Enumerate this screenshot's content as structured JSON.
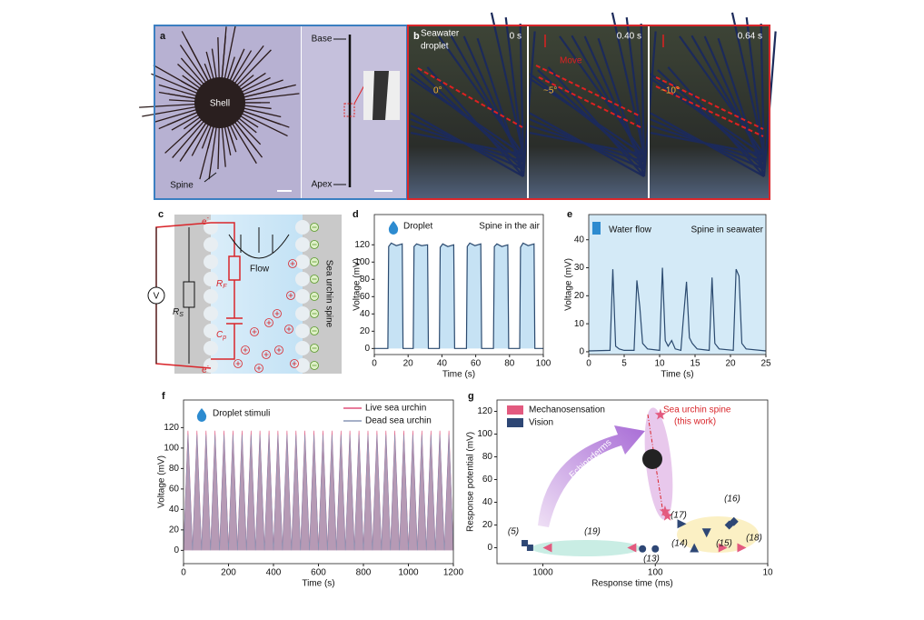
{
  "panels": {
    "a": {
      "label": "a",
      "shell": "Shell",
      "spine": "Spine",
      "base": "Base",
      "apex": "Apex"
    },
    "b": {
      "label": "b",
      "droplet": [
        "Seawater",
        "droplet"
      ],
      "times": [
        "0 s",
        "0.40 s",
        "0.64 s"
      ],
      "move": "Move",
      "angles": [
        "0°",
        "~5°",
        "~10°"
      ]
    },
    "c": {
      "label": "c",
      "electron": "e",
      "electron_sup": "-",
      "flow": "Flow",
      "rf": {
        "main": "R",
        "sub": "F"
      },
      "cp": {
        "main": "C",
        "sub": "p"
      },
      "rs": {
        "main": "R",
        "sub": "S"
      },
      "meter": "V",
      "spine": "Sea urchin spine"
    }
  },
  "chart_data": [
    {
      "type": "line",
      "panel": "d",
      "annotations": [
        "Droplet",
        "Spine in the air"
      ],
      "x_label": "Time (s)",
      "y_label": "Voltage (mV)",
      "xlim": [
        0,
        100
      ],
      "xticks": [
        0,
        20,
        40,
        60,
        80,
        100
      ],
      "ylim": [
        -7,
        155
      ],
      "yticks": [
        0,
        20,
        40,
        60,
        80,
        100,
        120
      ],
      "area_color": "#c6e2f4",
      "series": [
        {
          "color": "#2b4a6f",
          "x": [
            0,
            8,
            8.5,
            10,
            13,
            16.5,
            17,
            23,
            23.5,
            25,
            28,
            31.5,
            32,
            38.5,
            39,
            40.5,
            43.5,
            47,
            47.5,
            54.5,
            55,
            56.5,
            59.5,
            63,
            63.5,
            70.5,
            71,
            72.5,
            75.5,
            79,
            79.5,
            86,
            86.5,
            88,
            91,
            94.5,
            95,
            100
          ],
          "values": [
            0,
            0,
            118,
            122,
            119,
            121,
            0,
            0,
            118,
            121,
            119,
            120,
            0,
            0,
            117,
            121,
            118,
            120,
            0,
            0,
            118,
            122,
            119,
            121,
            0,
            0,
            118,
            121,
            118,
            120,
            0,
            0,
            117,
            122,
            119,
            121,
            0,
            0
          ]
        }
      ]
    },
    {
      "type": "line",
      "panel": "e",
      "annotations": [
        "Water flow",
        "Spine in seawater"
      ],
      "x_label": "Time (s)",
      "y_label": "Voltage (mV)",
      "xlim": [
        0,
        25
      ],
      "xticks": [
        0,
        5,
        10,
        15,
        20,
        25
      ],
      "ylim": [
        -1,
        49
      ],
      "yticks": [
        0,
        10,
        20,
        30,
        40
      ],
      "plot_background": "#d4eaf7",
      "series": [
        {
          "color": "#2b4a6f",
          "x": [
            0,
            3,
            3.4,
            3.8,
            4.3,
            5,
            6.4,
            6.8,
            7.2,
            7.6,
            8.3,
            10,
            10.4,
            10.8,
            11.2,
            11.7,
            12.2,
            13,
            13.3,
            13.8,
            14.2,
            14.6,
            15.3,
            17,
            17.4,
            17.8,
            18.4,
            20.4,
            20.8,
            21.2,
            21.6,
            22.2,
            25
          ],
          "values": [
            0.3,
            0.5,
            29.5,
            2,
            1,
            0.5,
            0.5,
            25.5,
            16,
            3,
            1,
            0.5,
            30,
            4,
            2,
            4,
            1,
            0.5,
            10,
            25,
            5,
            3,
            1,
            0.5,
            26.5,
            3,
            1,
            0.5,
            29.5,
            27,
            3,
            1,
            0.3
          ]
        }
      ]
    },
    {
      "type": "line",
      "panel": "f",
      "annotations": [
        "Droplet stimuli"
      ],
      "x_label": "Time (s)",
      "y_label": "Voltage (mV)",
      "xlim": [
        0,
        1200
      ],
      "xticks": [
        0,
        200,
        400,
        600,
        800,
        1000,
        1200
      ],
      "ylim": [
        -13,
        147
      ],
      "yticks": [
        0,
        20,
        40,
        60,
        80,
        100,
        120
      ],
      "area": true,
      "series": [
        {
          "name": "Live sea urchin",
          "color": "#e0507a",
          "x": [
            0,
            20,
            40,
            60,
            80,
            100,
            120,
            140,
            160,
            180,
            200,
            220,
            240,
            260,
            280,
            300,
            320,
            340,
            360,
            380,
            400,
            420,
            440,
            460,
            480,
            500,
            520,
            540,
            560,
            580,
            600,
            620,
            640,
            660,
            680,
            700,
            720,
            740,
            760,
            780,
            800,
            820,
            840,
            860,
            880,
            900,
            920,
            940,
            960,
            980,
            1000,
            1020,
            1040,
            1060,
            1080,
            1100,
            1120,
            1140,
            1160,
            1180,
            1200
          ],
          "values": [
            1,
            117,
            1,
            117,
            1,
            117,
            1,
            117,
            1,
            117,
            1,
            117,
            1,
            117,
            1,
            117,
            1,
            117,
            1,
            117,
            1,
            117,
            1,
            117,
            1,
            117,
            1,
            117,
            1,
            117,
            1,
            117,
            1,
            117,
            1,
            117,
            1,
            117,
            1,
            117,
            1,
            117,
            1,
            117,
            1,
            117,
            1,
            117,
            1,
            117,
            1,
            117,
            1,
            117,
            1,
            117,
            1,
            117,
            1,
            117,
            1
          ]
        },
        {
          "name": "Dead sea urchin",
          "color": "#8895b5",
          "x": [
            0,
            20,
            40,
            60,
            80,
            100,
            120,
            140,
            160,
            180,
            200,
            220,
            240,
            260,
            280,
            300,
            320,
            340,
            360,
            380,
            400,
            420,
            440,
            460,
            480,
            500,
            520,
            540,
            560,
            580,
            600,
            620,
            640,
            660,
            680,
            700,
            720,
            740,
            760,
            780,
            800,
            820,
            840,
            860,
            880,
            900,
            920,
            940,
            960,
            980,
            1000,
            1020,
            1040,
            1060,
            1080,
            1100,
            1120,
            1140,
            1160,
            1180,
            1200
          ],
          "values": [
            0,
            113,
            0,
            113,
            0,
            113,
            0,
            113,
            0,
            113,
            0,
            113,
            0,
            113,
            0,
            113,
            0,
            113,
            0,
            113,
            0,
            113,
            0,
            113,
            0,
            113,
            0,
            113,
            0,
            113,
            0,
            113,
            0,
            113,
            0,
            113,
            0,
            113,
            0,
            113,
            0,
            113,
            0,
            113,
            0,
            113,
            0,
            113,
            0,
            113,
            0,
            113,
            0,
            113,
            0,
            113,
            0,
            113,
            0,
            113,
            0
          ]
        }
      ]
    },
    {
      "type": "scatter",
      "panel": "g",
      "annotations": [
        "Sea urchin spine",
        "(this work)",
        "Echinoderms",
        "(5)",
        "(19)",
        "(13)",
        "(14)",
        "(15)",
        "(17)",
        "(16)",
        "(18)"
      ],
      "x_label": "Response time (ms)",
      "y_label": "Response potential (mV)",
      "xlog": true,
      "xlim": [
        2560,
        10
      ],
      "xticks": [
        1000,
        100,
        10
      ],
      "ylim": [
        -14,
        130
      ],
      "yticks": [
        0,
        20,
        40,
        60,
        80,
        100,
        120
      ],
      "series": [
        {
          "name": "Mechanosensation",
          "color": "#e35a7f",
          "x": [
            90,
            82,
            78,
            912,
            162,
            25,
            17
          ],
          "values": [
            117,
            32,
            28,
            0,
            0,
            0,
            0
          ],
          "markers": [
            "star",
            "star",
            "star",
            "triangle-left",
            "triangle-left",
            "triangle-right",
            "triangle-right"
          ]
        },
        {
          "name": "Vision",
          "color": "#2e4775",
          "x": [
            1450,
            1300,
            130,
            100,
            58,
            45,
            35,
            22,
            20
          ],
          "values": [
            4,
            0,
            -1,
            -1,
            21,
            0,
            13,
            20,
            23
          ],
          "markers": [
            "square",
            "square",
            "circle",
            "circle",
            "triangle-right",
            "triangle-up",
            "triangle-down",
            "diamond",
            "diamond"
          ]
        }
      ]
    }
  ]
}
